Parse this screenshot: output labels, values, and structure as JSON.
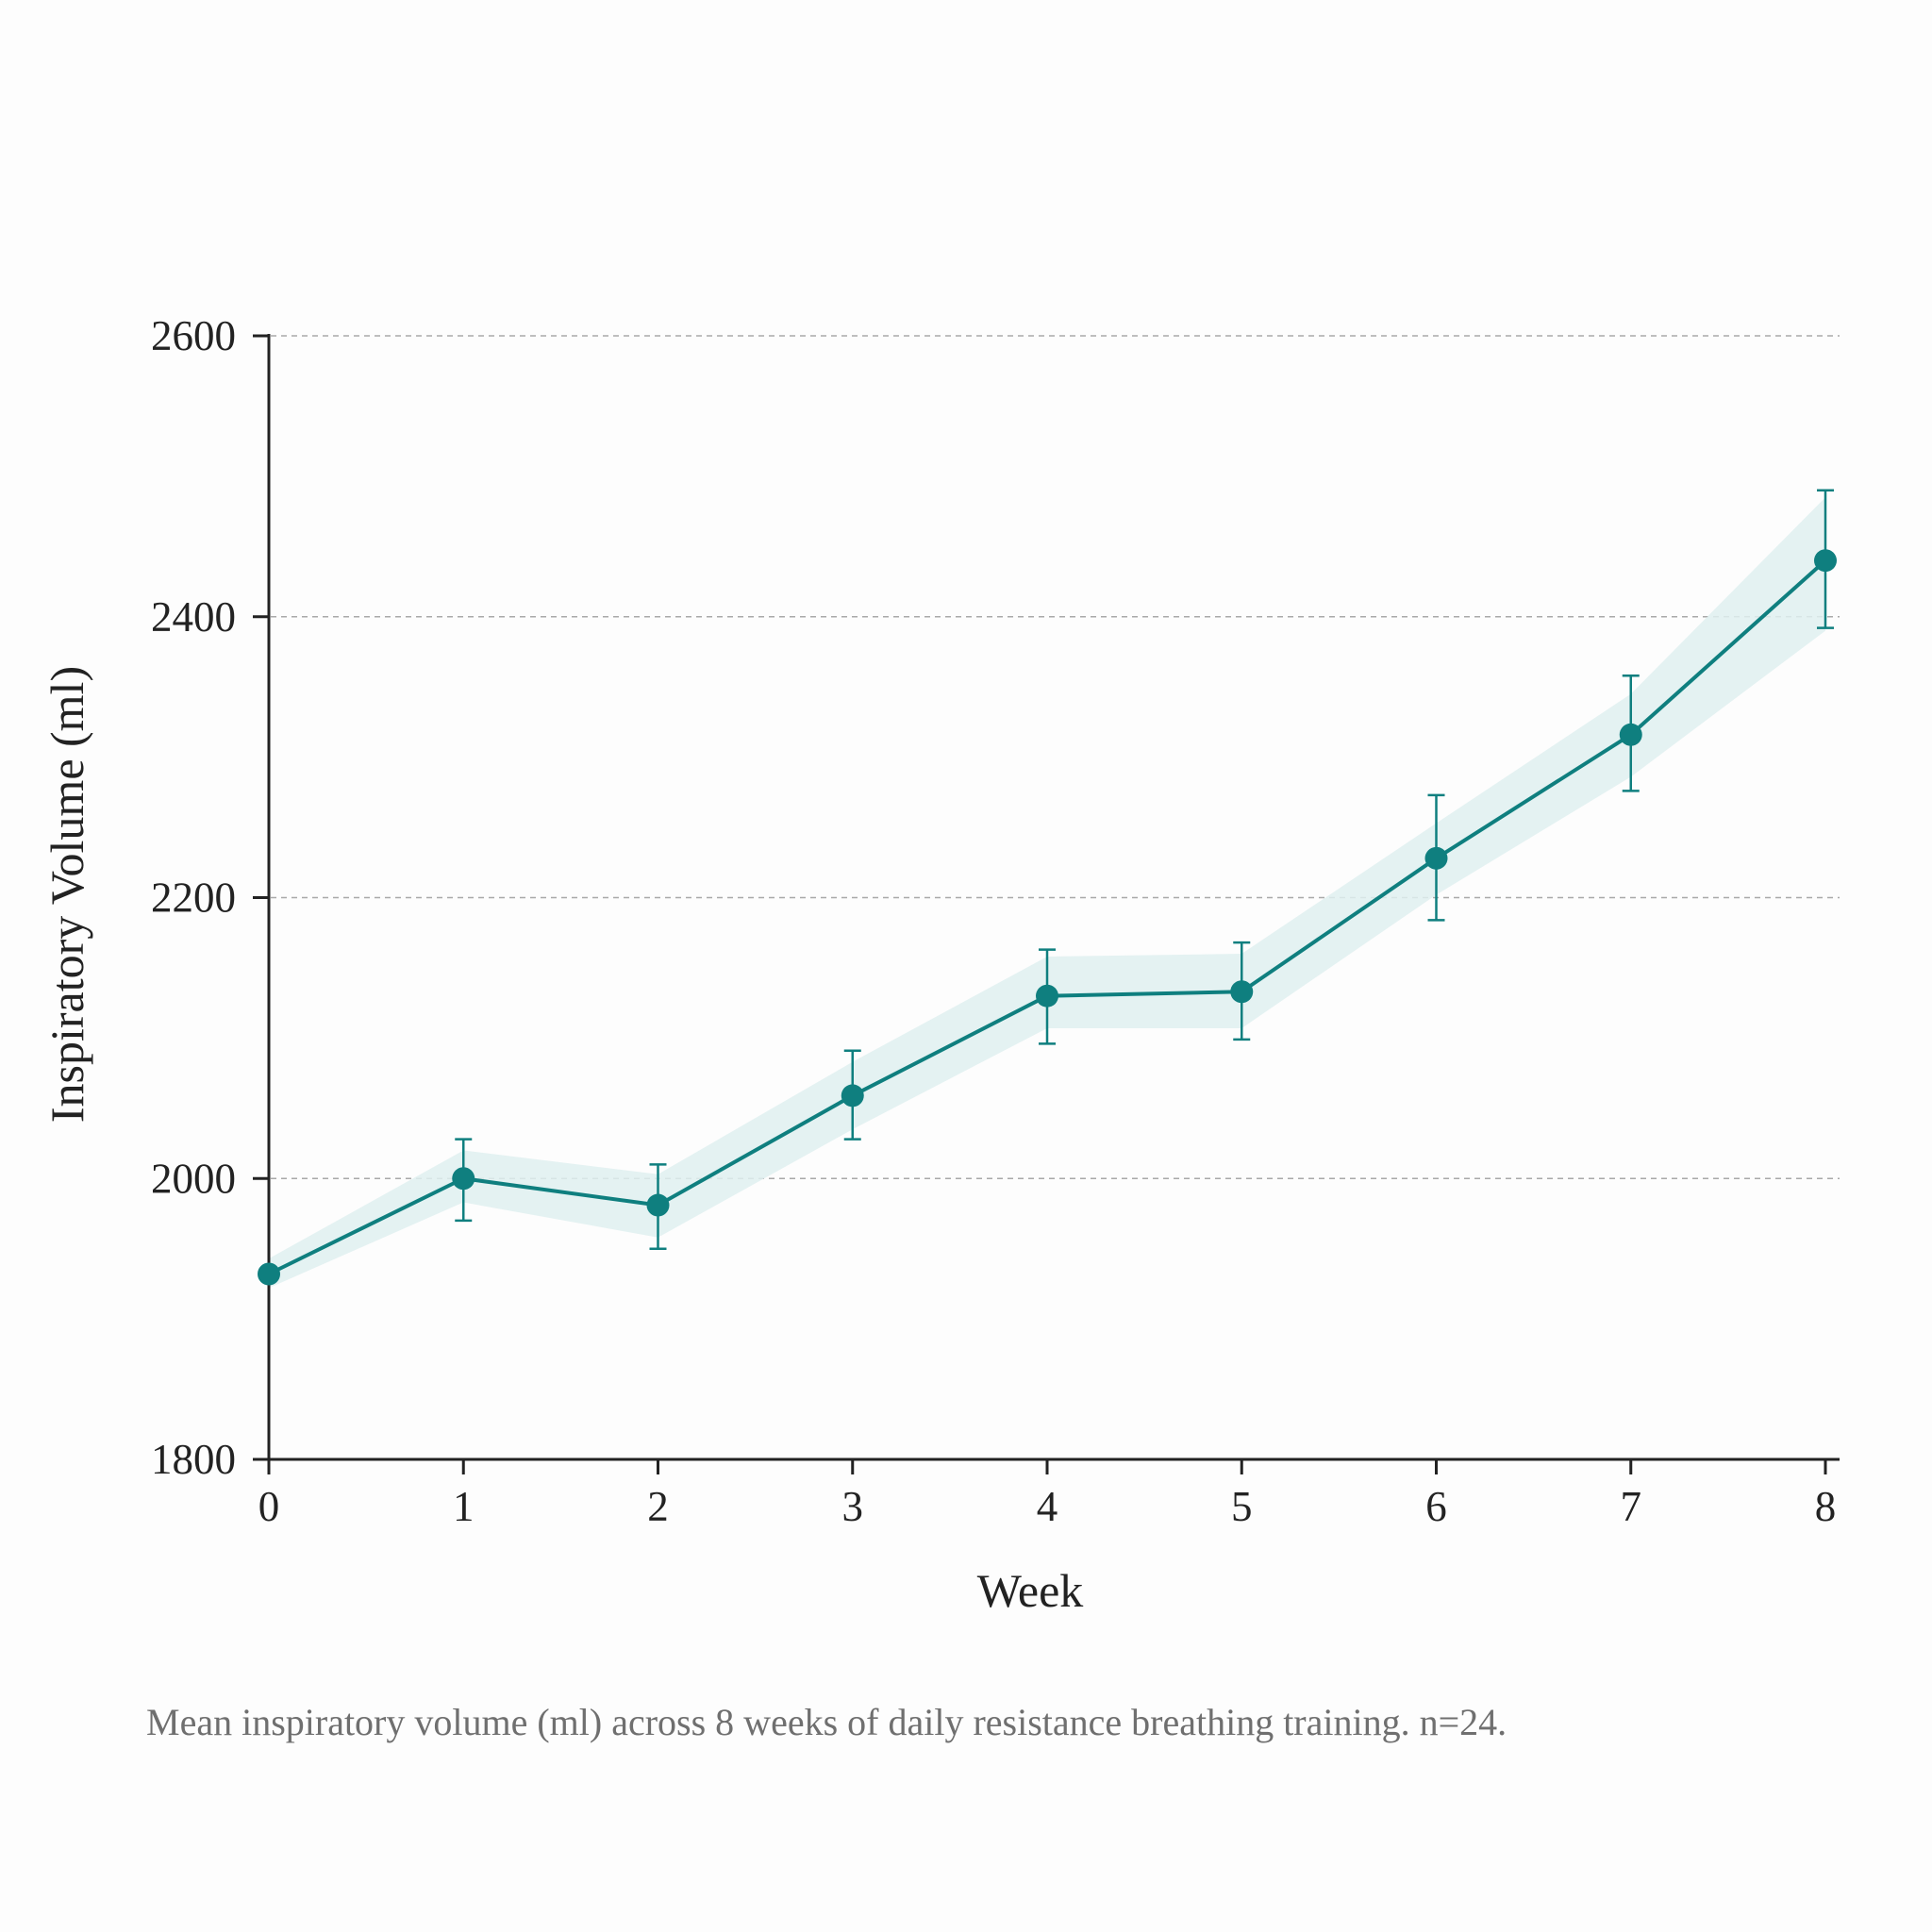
{
  "chart_data": {
    "type": "line",
    "title": "",
    "xlabel": "Week",
    "ylabel": "Inspiratory Volume (ml)",
    "x": [
      0,
      1,
      2,
      3,
      4,
      5,
      6,
      7,
      8
    ],
    "xlim": [
      0,
      8
    ],
    "ylim": [
      1800,
      2600
    ],
    "y_ticks": [
      1800,
      2000,
      2200,
      2400,
      2600
    ],
    "x_ticks": [
      0,
      1,
      2,
      3,
      4,
      5,
      6,
      7,
      8
    ],
    "grid": "horizontal dashed",
    "series": [
      {
        "values": [
          1932,
          2000,
          1981,
          2059,
          2130,
          2133,
          2228,
          2316,
          2440
        ],
        "error_low": [
          null,
          1970,
          1950,
          2028,
          2096,
          2099,
          2184,
          2276,
          2392
        ],
        "error_high": [
          null,
          2028,
          2010,
          2091,
          2163,
          2168,
          2273,
          2358,
          2490
        ],
        "band_low": [
          1922,
          1983,
          1958,
          2035,
          2107,
          2107,
          2202,
          2286,
          2390
        ],
        "band_high": [
          1943,
          2020,
          2003,
          2083,
          2158,
          2160,
          2253,
          2345,
          2485
        ],
        "color": "#0f7f7f",
        "band_color": "#dff0f0"
      }
    ]
  },
  "caption": "Mean inspiratory volume (ml) across 8 weeks of daily resistance breathing training. n=24."
}
